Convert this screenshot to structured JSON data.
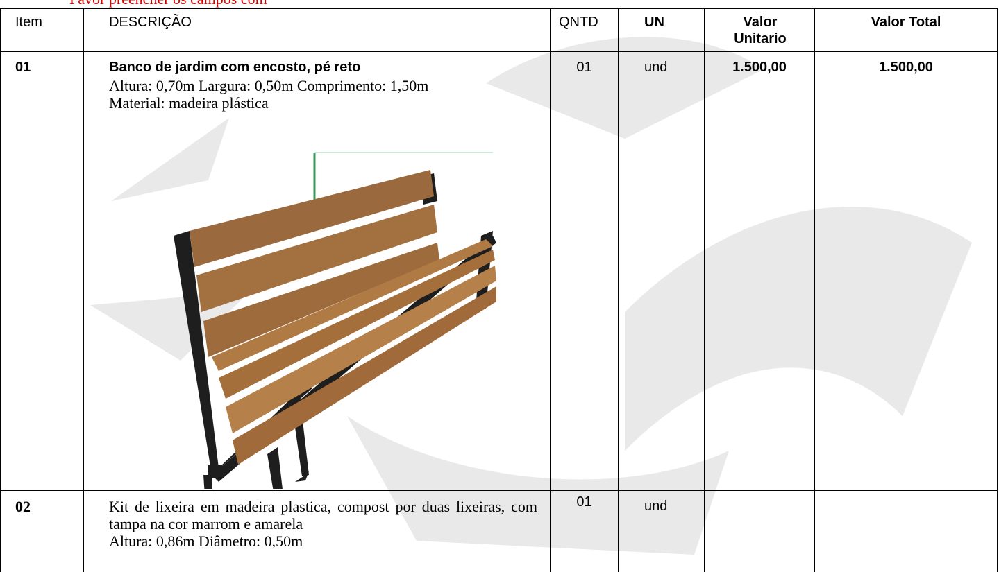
{
  "notice": "Favor preencher os campos com",
  "table": {
    "header": [
      "Item",
      "DESCRIÇÃO",
      "QNTD",
      "UN",
      "Valor Unitario",
      "Valor Total"
    ],
    "rows": [
      {
        "item": "01",
        "title": "Banco de jardim com encosto, pé reto",
        "lines": [
          "Altura: 0,70m Largura: 0,50m Comprimento: 1,50m",
          "Material: madeira plástica"
        ],
        "qty": "01",
        "unit": "und",
        "unit_value": "1.500,00",
        "total": "1.500,00"
      },
      {
        "item": "02",
        "lines": [
          "Kit de lixeira em madeira plastica, compost por duas lixeiras, com tampa na cor marrom e amarela",
          "Altura: 0,86m Diâmetro: 0,50m"
        ],
        "qty": "01",
        "unit": "und"
      }
    ]
  }
}
